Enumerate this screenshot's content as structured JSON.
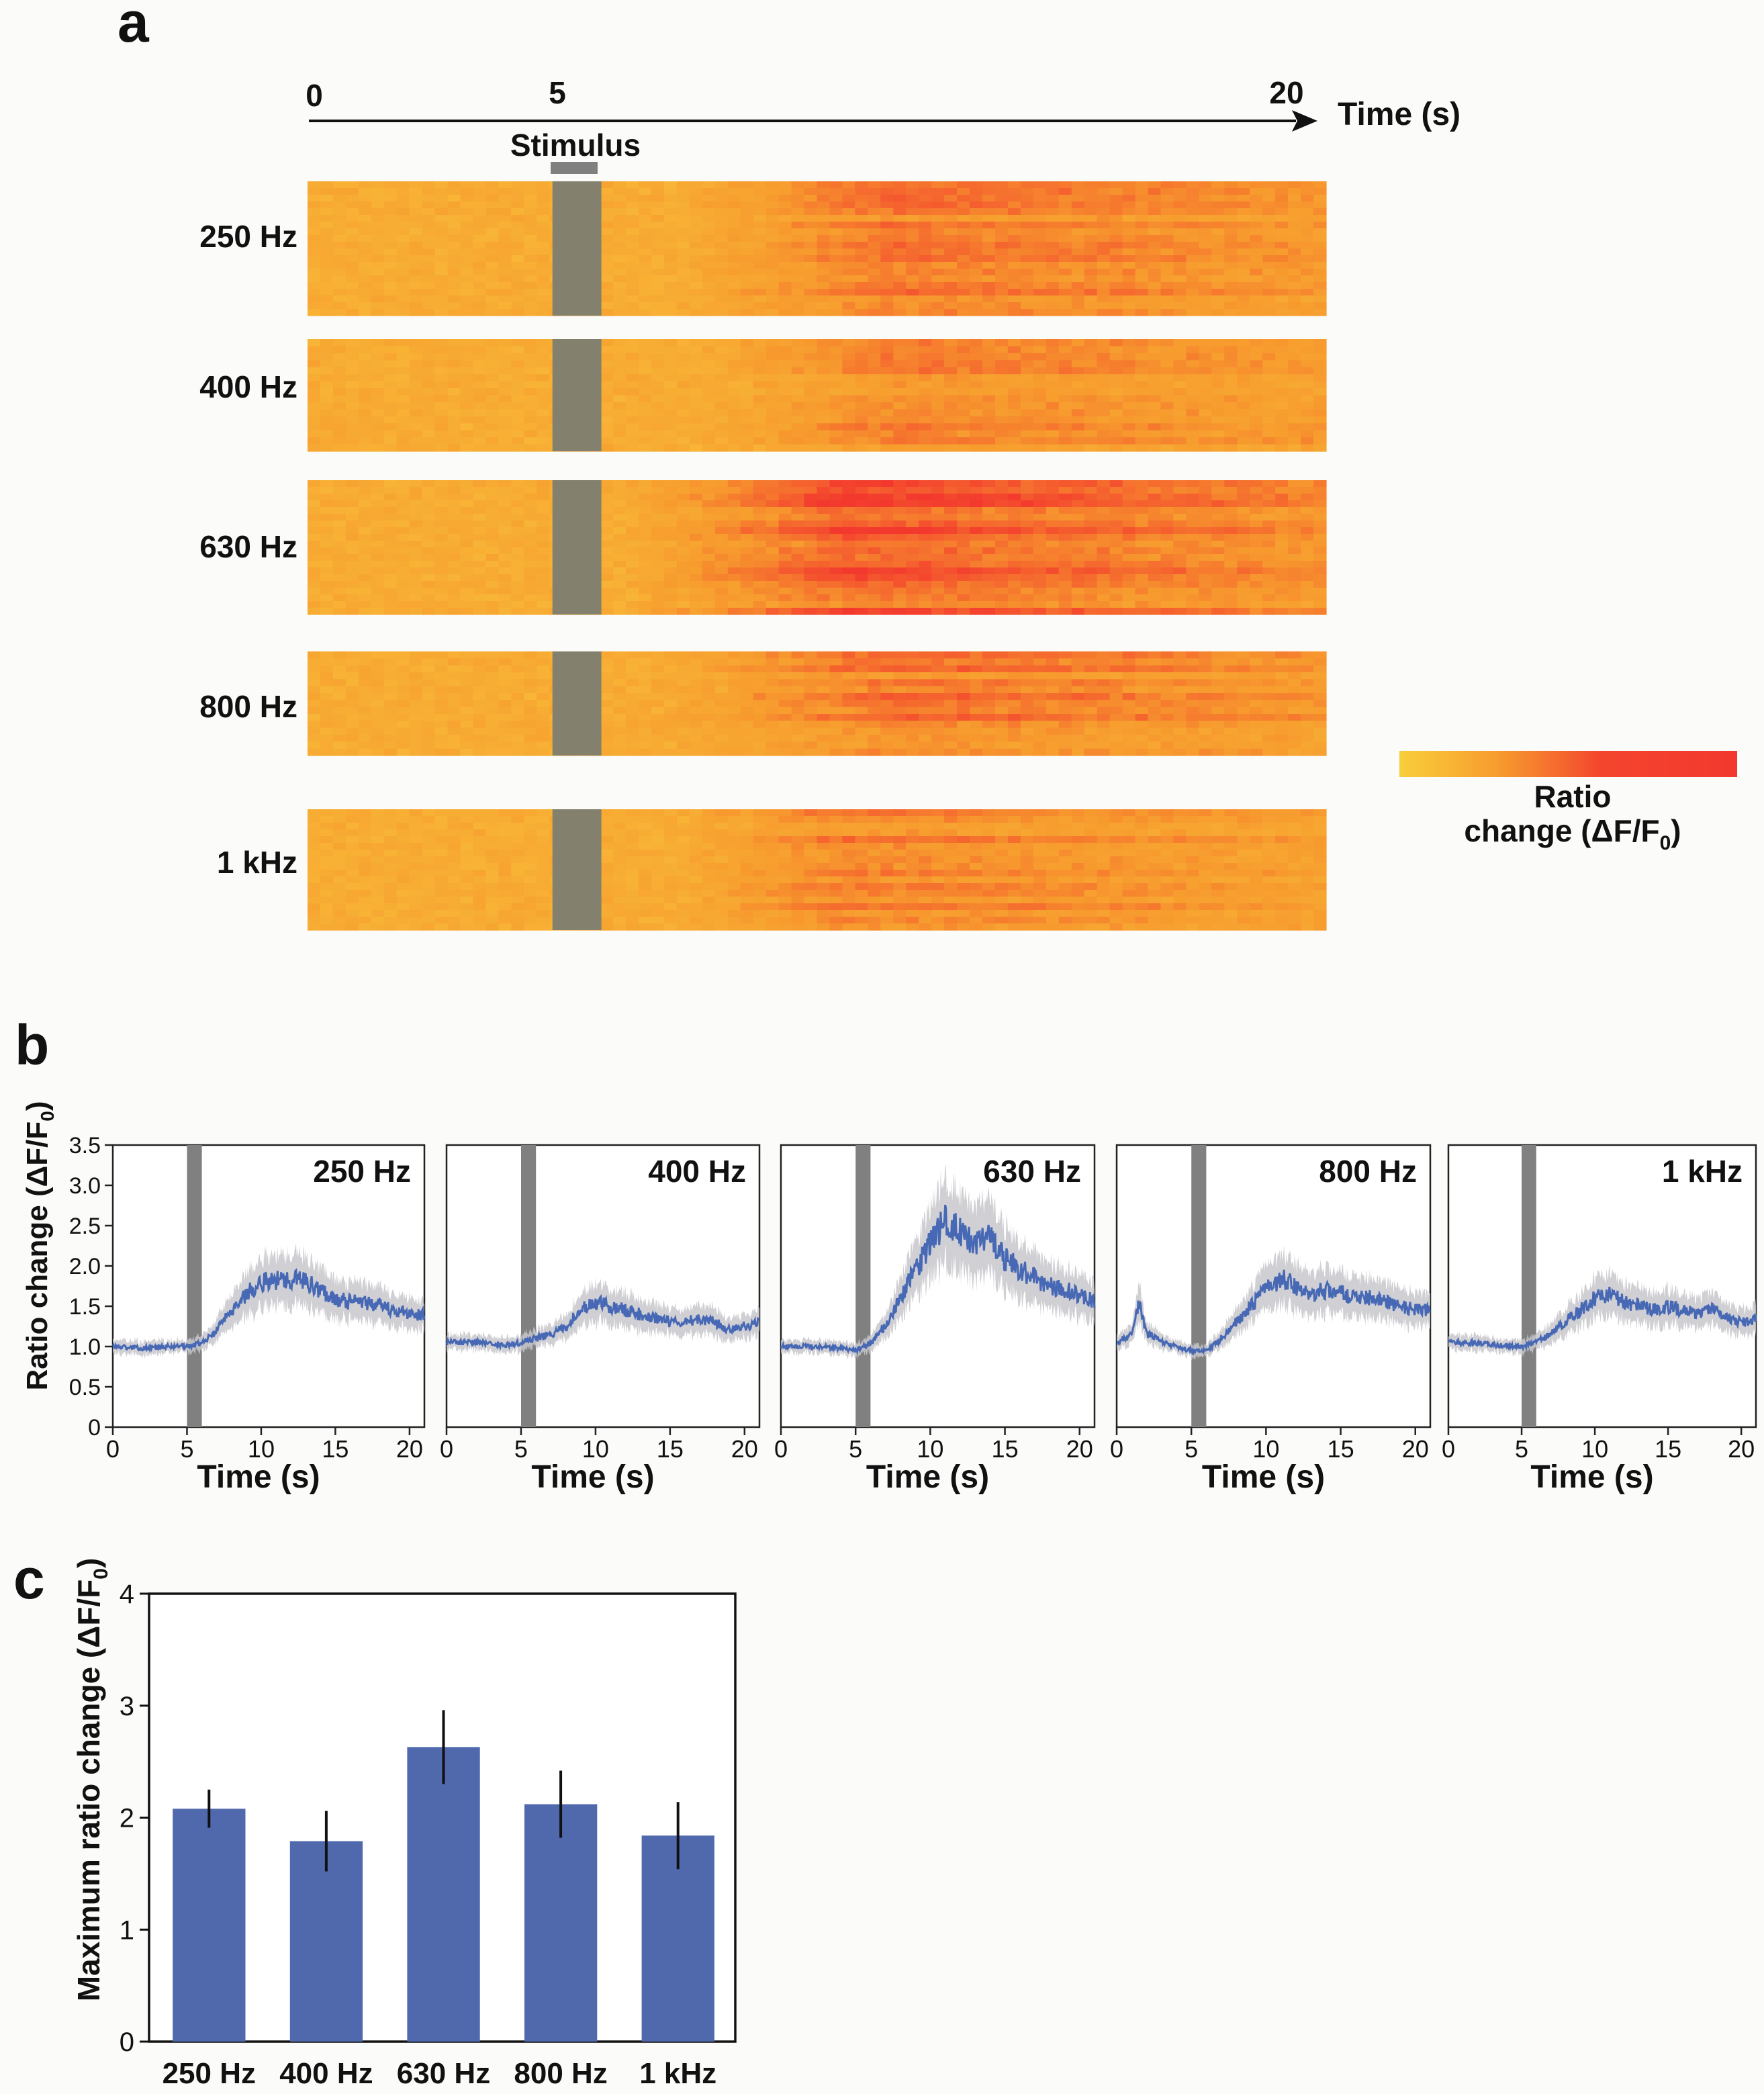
{
  "panel_letters": {
    "a": "a",
    "b": "b",
    "c": "c"
  },
  "colors": {
    "heat_low": "#f8c23a",
    "heat_mid": "#f79a2e",
    "heat_high": "#f3382e",
    "stim": "#7f7f6f",
    "line": "#4768b4",
    "band": "#c8c8cc",
    "bar": "#5069ad"
  },
  "chart_data": [
    {
      "type": "heatmap",
      "panel": "a",
      "time_axis": {
        "ticks": [
          0,
          5,
          20
        ],
        "tick_labels": [
          "0",
          "5",
          "20"
        ],
        "label": "Time (s)",
        "range": [
          0,
          20.8
        ]
      },
      "stimulus": {
        "label": "Stimulus",
        "start": 5,
        "end": 6
      },
      "rows": [
        {
          "label": "250 Hz",
          "n_traces": 20,
          "onset": 7.5,
          "peak": 12,
          "response": 0.55
        },
        {
          "label": "400 Hz",
          "n_traces": 16,
          "onset": 8.0,
          "peak": 12,
          "response": 0.42
        },
        {
          "label": "630 Hz",
          "n_traces": 20,
          "onset": 6.5,
          "peak": 11,
          "response": 0.78
        },
        {
          "label": "800 Hz",
          "n_traces": 15,
          "onset": 7.0,
          "peak": 12,
          "response": 0.55
        },
        {
          "label": "1 kHz",
          "n_traces": 18,
          "onset": 7.5,
          "peak": 11,
          "response": 0.45
        }
      ],
      "colorbar": {
        "label_line1": "Ratio",
        "label_line2": "change (ΔF/F",
        "label_sub": "0",
        "label_end": ")",
        "range": [
          1.0,
          3.5
        ]
      }
    },
    {
      "type": "line",
      "panel": "b",
      "ylabel": "Ratio change (ΔF/F",
      "ylabel_sub": "0",
      "ylabel_end": ")",
      "xlabel": "Time (s)",
      "ylim": [
        0,
        3.5
      ],
      "yticks": [
        0,
        0.5,
        1.0,
        1.5,
        2.0,
        2.5,
        3.0,
        3.5
      ],
      "ytick_labels": [
        "0",
        "0.5",
        "1.0",
        "1.5",
        "2.0",
        "2.5",
        "3.0",
        "3.5"
      ],
      "xlim": [
        0,
        21
      ],
      "xticks": [
        0,
        5,
        10,
        15,
        20
      ],
      "xtick_labels": [
        "0",
        "5",
        "10",
        "15",
        "20"
      ],
      "stimulus": {
        "start": 5,
        "end": 6
      },
      "series": [
        {
          "name": "250 Hz",
          "x": [
            0,
            2,
            4,
            5,
            6,
            7,
            8,
            9,
            10,
            11,
            12,
            13,
            14,
            15,
            16,
            17,
            18,
            19,
            20,
            21
          ],
          "y": [
            1.0,
            0.98,
            1.0,
            1.0,
            1.05,
            1.2,
            1.45,
            1.65,
            1.8,
            1.82,
            1.85,
            1.8,
            1.7,
            1.6,
            1.55,
            1.55,
            1.5,
            1.45,
            1.4,
            1.4
          ]
        },
        {
          "name": "400 Hz",
          "x": [
            0,
            2,
            4,
            5,
            6,
            7,
            8,
            9,
            10,
            11,
            12,
            13,
            14,
            15,
            16,
            17,
            18,
            19,
            20,
            21
          ],
          "y": [
            1.05,
            1.05,
            1.02,
            1.05,
            1.1,
            1.15,
            1.25,
            1.45,
            1.55,
            1.5,
            1.45,
            1.4,
            1.35,
            1.3,
            1.3,
            1.35,
            1.3,
            1.2,
            1.25,
            1.3
          ]
        },
        {
          "name": "630 Hz",
          "x": [
            0,
            2,
            4,
            5,
            6,
            7,
            8,
            9,
            10,
            11,
            12,
            13,
            14,
            15,
            16,
            17,
            18,
            19,
            20,
            21
          ],
          "y": [
            1.0,
            1.0,
            0.98,
            0.95,
            1.05,
            1.25,
            1.6,
            1.95,
            2.3,
            2.55,
            2.45,
            2.3,
            2.35,
            2.1,
            1.95,
            1.85,
            1.75,
            1.7,
            1.65,
            1.55
          ]
        },
        {
          "name": "800 Hz",
          "x": [
            0,
            1,
            1.5,
            2,
            4,
            5,
            6,
            7,
            8,
            9,
            10,
            11,
            12,
            13,
            14,
            15,
            16,
            17,
            18,
            19,
            20,
            21
          ],
          "y": [
            1.05,
            1.15,
            1.55,
            1.15,
            1.0,
            0.95,
            0.95,
            1.1,
            1.3,
            1.5,
            1.7,
            1.85,
            1.75,
            1.65,
            1.7,
            1.65,
            1.6,
            1.6,
            1.55,
            1.5,
            1.45,
            1.45
          ]
        },
        {
          "name": "1 kHz",
          "x": [
            0,
            2,
            4,
            5,
            6,
            7,
            8,
            9,
            10,
            11,
            12,
            13,
            14,
            15,
            16,
            17,
            18,
            19,
            20,
            21
          ],
          "y": [
            1.05,
            1.05,
            1.0,
            1.0,
            1.05,
            1.15,
            1.3,
            1.45,
            1.6,
            1.65,
            1.55,
            1.5,
            1.45,
            1.5,
            1.45,
            1.4,
            1.45,
            1.35,
            1.3,
            1.35
          ]
        }
      ]
    },
    {
      "type": "bar",
      "panel": "c",
      "categories": [
        "250 Hz",
        "400 Hz",
        "630 Hz",
        "800 Hz",
        "1 kHz"
      ],
      "values": [
        2.08,
        1.79,
        2.63,
        2.12,
        1.84
      ],
      "errors": [
        0.17,
        0.27,
        0.33,
        0.3,
        0.3
      ],
      "ylabel": "Maximum ratio change (ΔF/F",
      "ylabel_sub": "0",
      "ylabel_end": ")",
      "ylim": [
        0,
        4
      ],
      "yticks": [
        0,
        1,
        2,
        3,
        4
      ],
      "ytick_labels": [
        "0",
        "1",
        "2",
        "3",
        "4"
      ]
    }
  ]
}
